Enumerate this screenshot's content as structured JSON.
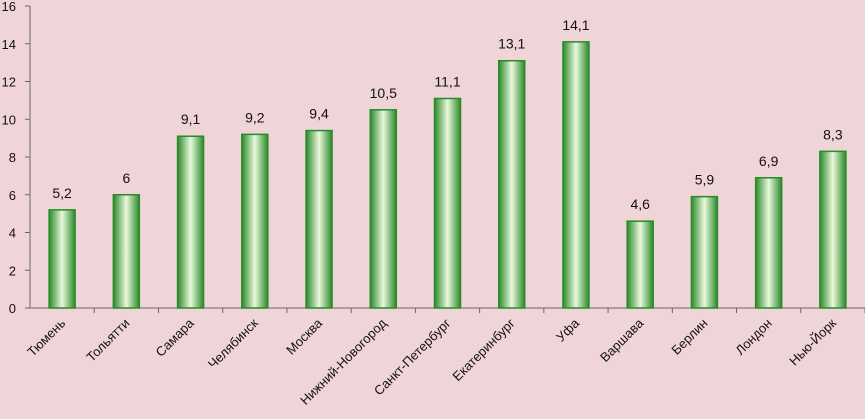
{
  "chart_data": {
    "type": "bar",
    "categories": [
      "Тюмень",
      "Тольятти",
      "Самара",
      "Челябинск",
      "Москва",
      "Нижний-Новогород",
      "Санкт-Петербург",
      "Екатеринбург",
      "Уфа",
      "Варшава",
      "Берлин",
      "Лондон",
      "Нью-Йорк"
    ],
    "values": [
      5.2,
      6,
      9.1,
      9.2,
      9.4,
      10.5,
      11.1,
      13.1,
      14.1,
      4.6,
      5.9,
      6.9,
      8.3
    ],
    "value_labels": [
      "5,2",
      "6",
      "9,1",
      "9,2",
      "9,4",
      "10,5",
      "11,1",
      "13,1",
      "14,1",
      "4,6",
      "5,9",
      "6,9",
      "8,3"
    ],
    "color": "#2a8a2a",
    "ylim": [
      0,
      16
    ],
    "yticks": [
      0,
      2,
      4,
      6,
      8,
      10,
      12,
      14,
      16
    ],
    "grid": false
  }
}
